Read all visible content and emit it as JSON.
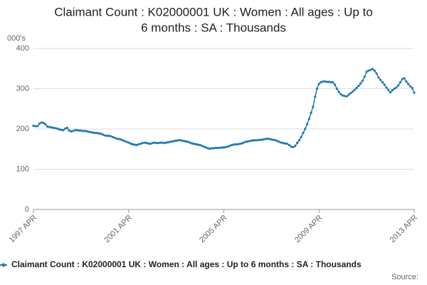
{
  "chart_data": {
    "type": "line",
    "title": [
      "Claimant Count : K02000001 UK : Women : All ages : Up to",
      "6 months : SA : Thousands"
    ],
    "ylabel": "000's",
    "source": "Source:",
    "categories": [
      "1997 APR",
      null,
      null,
      null,
      null,
      null,
      null,
      null,
      null,
      null,
      null,
      null,
      null,
      null,
      null,
      null,
      null,
      null,
      null,
      null,
      null,
      null,
      null,
      null,
      null,
      null,
      null,
      null,
      null,
      null,
      null,
      null,
      null,
      null,
      null,
      null,
      null,
      null,
      null,
      null,
      null,
      null,
      null,
      null,
      null,
      null,
      null,
      null,
      "2001 APR",
      null,
      null,
      null,
      null,
      null,
      null,
      null,
      null,
      null,
      null,
      null,
      null,
      null,
      null,
      null,
      null,
      null,
      null,
      null,
      null,
      null,
      null,
      null,
      null,
      null,
      null,
      null,
      null,
      null,
      null,
      null,
      null,
      null,
      null,
      null,
      null,
      null,
      null,
      null,
      null,
      null,
      null,
      null,
      null,
      null,
      null,
      null,
      "2005 APR",
      null,
      null,
      null,
      null,
      null,
      null,
      null,
      null,
      null,
      null,
      null,
      null,
      null,
      null,
      null,
      null,
      null,
      null,
      null,
      null,
      null,
      null,
      null,
      null,
      null,
      null,
      null,
      null,
      null,
      null,
      null,
      null,
      null,
      null,
      null,
      null,
      null,
      null,
      null,
      null,
      null,
      null,
      null,
      null,
      null,
      null,
      null,
      "2009 APR",
      null,
      null,
      null,
      null,
      null,
      null,
      null,
      null,
      null,
      null,
      null,
      null,
      null,
      null,
      null,
      null,
      null,
      null,
      null,
      null,
      null,
      null,
      null,
      null,
      null,
      null,
      null,
      null,
      null,
      null,
      null,
      null,
      null,
      null,
      null,
      null,
      null,
      null,
      null,
      null,
      null,
      null,
      null,
      null,
      null,
      null,
      null,
      "2013 APR"
    ],
    "series": [
      {
        "name": "Claimant Count : K02000001 UK : Women : All ages : Up to 6 months : SA : Thousands",
        "color": "#1f78b4",
        "values": [
          208,
          207,
          207,
          213,
          216,
          215,
          212,
          206,
          205,
          204,
          203,
          202,
          201,
          199,
          198,
          197,
          201,
          203,
          196,
          194,
          195,
          197,
          197,
          196,
          196,
          195,
          195,
          194,
          193,
          192,
          191,
          190,
          190,
          189,
          188,
          186,
          184,
          183,
          183,
          182,
          180,
          178,
          176,
          175,
          174,
          172,
          170,
          168,
          166,
          164,
          162,
          161,
          160,
          162,
          163,
          165,
          166,
          165,
          164,
          163,
          165,
          166,
          165,
          165,
          166,
          166,
          165,
          166,
          167,
          168,
          169,
          170,
          171,
          172,
          172,
          171,
          170,
          169,
          168,
          166,
          164,
          163,
          162,
          161,
          160,
          158,
          156,
          154,
          152,
          151,
          152,
          152,
          153,
          153,
          153,
          154,
          154,
          155,
          156,
          158,
          160,
          161,
          162,
          162,
          163,
          164,
          166,
          168,
          169,
          170,
          171,
          172,
          172,
          172,
          173,
          173,
          174,
          175,
          176,
          175,
          174,
          173,
          172,
          170,
          168,
          166,
          165,
          164,
          163,
          160,
          156,
          155,
          158,
          165,
          172,
          180,
          190,
          200,
          212,
          225,
          240,
          255,
          280,
          300,
          312,
          316,
          318,
          318,
          317,
          317,
          316,
          316,
          310,
          300,
          292,
          286,
          283,
          282,
          281,
          285,
          289,
          293,
          297,
          302,
          307,
          313,
          320,
          330,
          342,
          345,
          347,
          349,
          345,
          338,
          328,
          322,
          316,
          310,
          303,
          297,
          291,
          296,
          300,
          303,
          308,
          316,
          324,
          326,
          318,
          312,
          306,
          302,
          290
        ]
      }
    ],
    "ylim": [
      0,
      400
    ],
    "yticks": [
      0,
      100,
      200,
      300,
      400
    ],
    "grid": true
  }
}
